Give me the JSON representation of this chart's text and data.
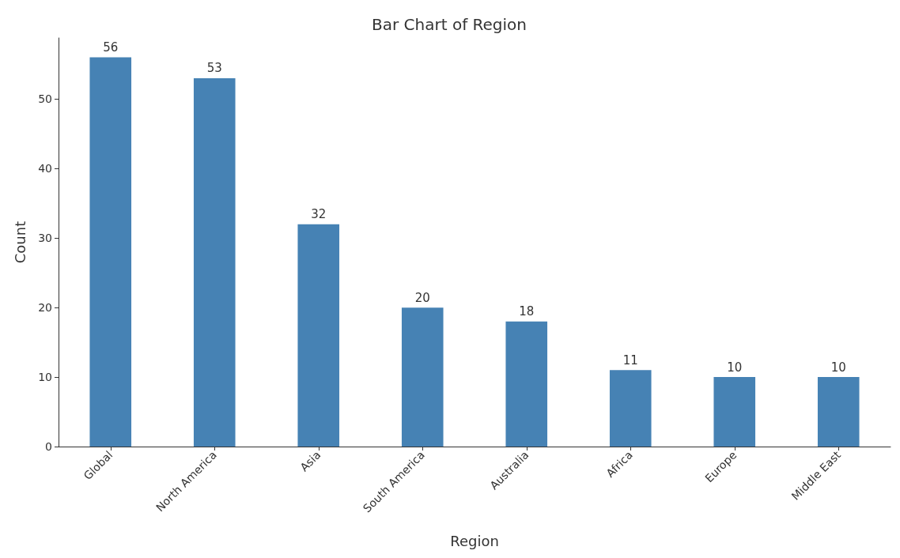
{
  "chart_data": {
    "type": "bar",
    "title": "Bar Chart of Region",
    "xlabel": "Region",
    "ylabel": "Count",
    "categories": [
      "Global",
      "North America",
      "Asia",
      "South America",
      "Australia",
      "Africa",
      "Europe",
      "Middle East"
    ],
    "values": [
      56,
      53,
      32,
      20,
      18,
      11,
      10,
      10
    ],
    "color": "#4682b4",
    "ylim": [
      0,
      58.8
    ],
    "yticks": [
      0,
      10,
      20,
      30,
      40,
      50
    ],
    "data_labels": true,
    "grid": false
  }
}
